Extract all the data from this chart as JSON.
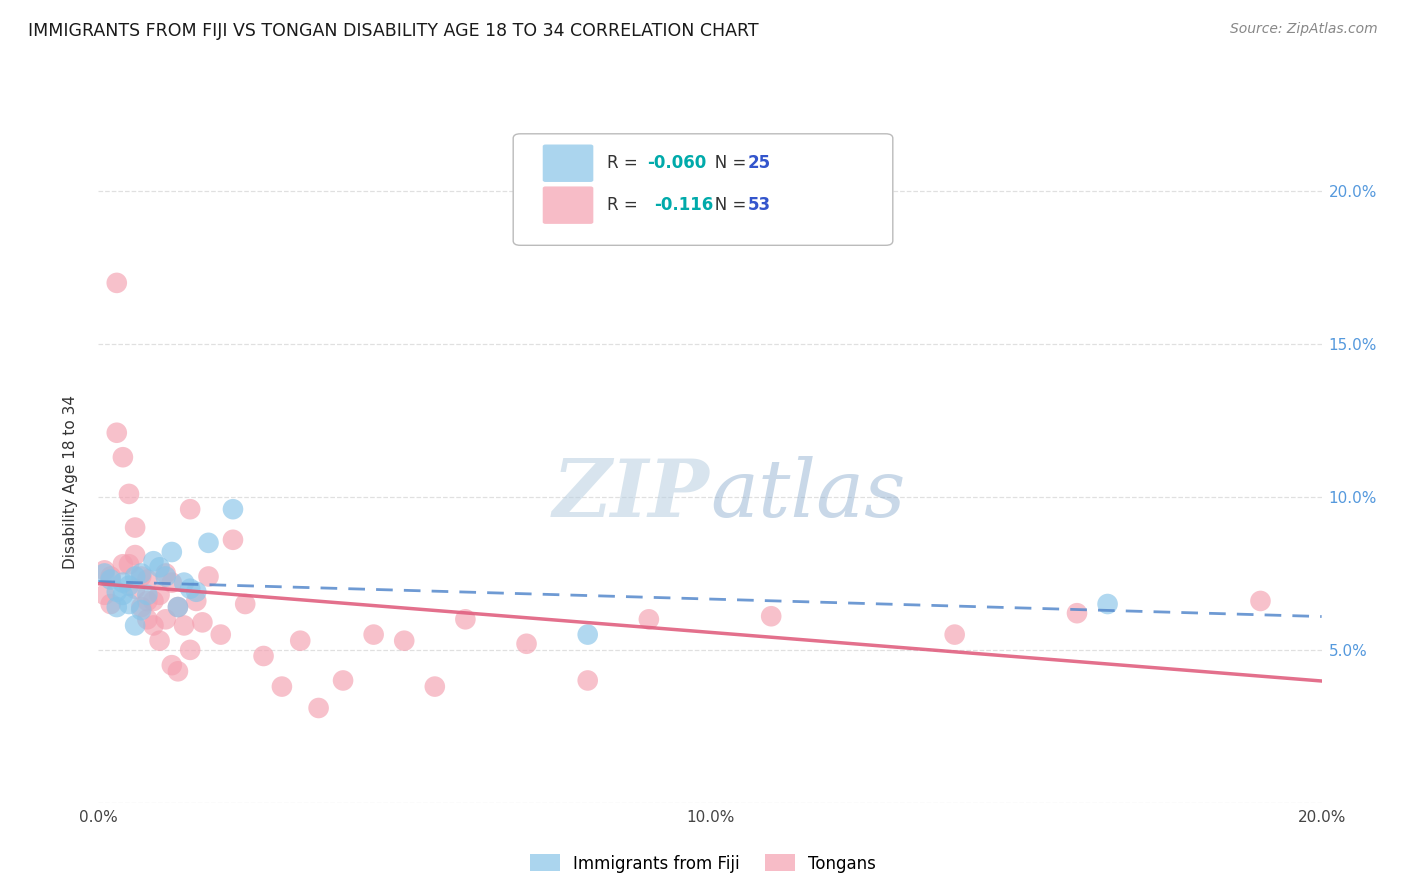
{
  "title": "IMMIGRANTS FROM FIJI VS TONGAN DISABILITY AGE 18 TO 34 CORRELATION CHART",
  "source": "Source: ZipAtlas.com",
  "ylabel": "Disability Age 18 to 34",
  "xlim": [
    0.0,
    0.2
  ],
  "ylim": [
    0.0,
    0.21
  ],
  "ytick_values": [
    0.0,
    0.05,
    0.1,
    0.15,
    0.2
  ],
  "ytick_labels": [
    "",
    "5.0%",
    "10.0%",
    "15.0%",
    "20.0%"
  ],
  "xtick_values": [
    0.0,
    0.02,
    0.04,
    0.06,
    0.08,
    0.1,
    0.12,
    0.14,
    0.16,
    0.18,
    0.2
  ],
  "xtick_labels": [
    "0.0%",
    "",
    "",
    "",
    "",
    "10.0%",
    "",
    "",
    "",
    "",
    "20.0%"
  ],
  "fiji_r": -0.06,
  "fiji_n": 25,
  "tongan_r": -0.116,
  "tongan_n": 53,
  "fiji_color": "#88c4e8",
  "tongan_color": "#f4a0b0",
  "fiji_line_color": "#5588cc",
  "tongan_line_color": "#e06080",
  "fiji_x": [
    0.001,
    0.002,
    0.003,
    0.003,
    0.004,
    0.004,
    0.005,
    0.005,
    0.006,
    0.006,
    0.007,
    0.007,
    0.008,
    0.009,
    0.01,
    0.011,
    0.012,
    0.013,
    0.014,
    0.015,
    0.016,
    0.018,
    0.022,
    0.08,
    0.165
  ],
  "fiji_y": [
    0.075,
    0.073,
    0.069,
    0.064,
    0.068,
    0.072,
    0.065,
    0.071,
    0.058,
    0.074,
    0.063,
    0.075,
    0.068,
    0.079,
    0.077,
    0.074,
    0.082,
    0.064,
    0.072,
    0.07,
    0.069,
    0.085,
    0.096,
    0.055,
    0.065
  ],
  "tongan_x": [
    0.001,
    0.001,
    0.002,
    0.002,
    0.003,
    0.003,
    0.004,
    0.004,
    0.005,
    0.005,
    0.006,
    0.006,
    0.006,
    0.007,
    0.007,
    0.008,
    0.008,
    0.008,
    0.009,
    0.009,
    0.01,
    0.01,
    0.011,
    0.011,
    0.012,
    0.012,
    0.013,
    0.013,
    0.014,
    0.015,
    0.015,
    0.016,
    0.017,
    0.018,
    0.02,
    0.022,
    0.024,
    0.027,
    0.03,
    0.033,
    0.036,
    0.04,
    0.045,
    0.05,
    0.055,
    0.06,
    0.07,
    0.08,
    0.09,
    0.11,
    0.14,
    0.16,
    0.19
  ],
  "tongan_y": [
    0.076,
    0.068,
    0.074,
    0.065,
    0.17,
    0.121,
    0.113,
    0.078,
    0.101,
    0.078,
    0.09,
    0.081,
    0.07,
    0.074,
    0.064,
    0.073,
    0.066,
    0.06,
    0.066,
    0.058,
    0.068,
    0.053,
    0.075,
    0.06,
    0.072,
    0.045,
    0.064,
    0.043,
    0.058,
    0.096,
    0.05,
    0.066,
    0.059,
    0.074,
    0.055,
    0.086,
    0.065,
    0.048,
    0.038,
    0.053,
    0.031,
    0.04,
    0.055,
    0.053,
    0.038,
    0.06,
    0.052,
    0.04,
    0.06,
    0.061,
    0.055,
    0.062,
    0.066
  ],
  "background_color": "#ffffff",
  "grid_color": "#dddddd"
}
